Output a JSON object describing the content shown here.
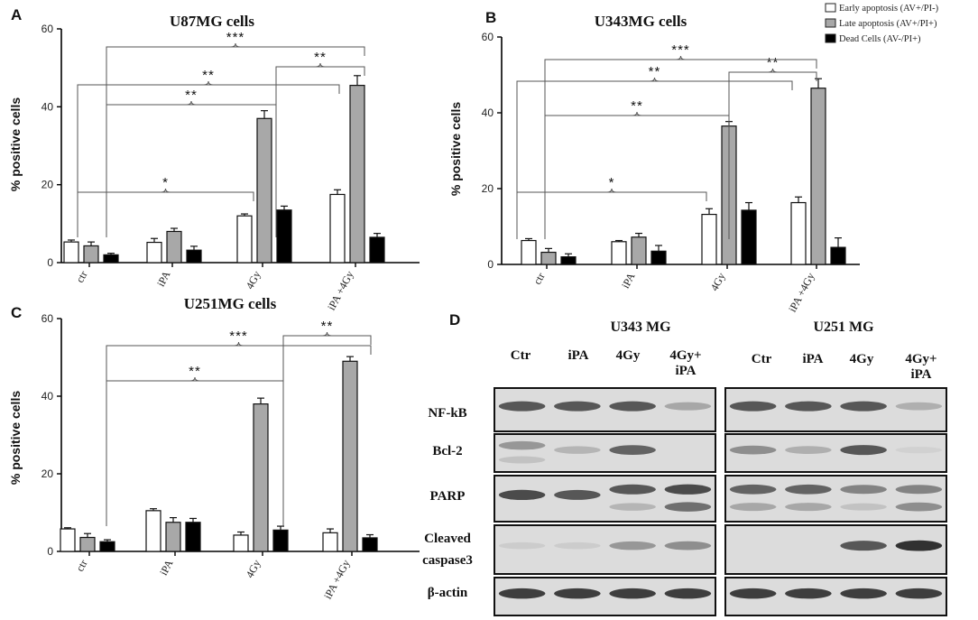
{
  "legend": {
    "items": [
      {
        "label": "Early apoptosis (AV+/PI-)",
        "color": "#ffffff"
      },
      {
        "label": "Late apoptosis (AV+/PI+)",
        "color": "#a8a8a8"
      },
      {
        "label": "Dead Cells (AV-/PI+)",
        "color": "#000000"
      }
    ]
  },
  "chart_data": [
    {
      "panel": "A",
      "type": "bar",
      "title": "U87MG cells",
      "ylabel": "% positive cells",
      "xlabel": "",
      "ylim": [
        0,
        60
      ],
      "yticks": [
        0,
        20,
        40,
        60
      ],
      "categories": [
        "ctr",
        "iPA",
        "4Gy",
        "iPA +4Gy"
      ],
      "series": [
        {
          "name": "Early apoptosis (AV+/PI-)",
          "color": "#ffffff",
          "values": [
            5.3,
            5.2,
            12.0,
            17.5
          ],
          "errors": [
            0.5,
            1.0,
            0.5,
            1.2
          ]
        },
        {
          "name": "Late apoptosis (AV+/PI+)",
          "color": "#a8a8a8",
          "values": [
            4.3,
            8.0,
            37.0,
            45.5
          ],
          "errors": [
            1.0,
            0.8,
            2.0,
            2.5
          ]
        },
        {
          "name": "Dead Cells (AV-/PI+)",
          "color": "#000000",
          "values": [
            2.0,
            3.2,
            13.5,
            6.5
          ],
          "errors": [
            0.4,
            1.0,
            1.0,
            1.0
          ]
        }
      ],
      "significance": [
        {
          "from": [
            0,
            0
          ],
          "to": [
            2,
            0
          ],
          "label": "*"
        },
        {
          "from": [
            0,
            1
          ],
          "to": [
            2,
            1
          ],
          "label": "**"
        },
        {
          "from": [
            0,
            0
          ],
          "to": [
            3,
            0
          ],
          "label": "**"
        },
        {
          "from": [
            2,
            1
          ],
          "to": [
            3,
            1
          ],
          "label": "**"
        },
        {
          "from": [
            0,
            1
          ],
          "to": [
            3,
            1
          ],
          "label": "***"
        }
      ]
    },
    {
      "panel": "B",
      "type": "bar",
      "title": "U343MG cells",
      "ylabel": "% positive cells",
      "xlabel": "",
      "ylim": [
        0,
        60
      ],
      "yticks": [
        0,
        20,
        40,
        60
      ],
      "categories": [
        "ctr",
        "iPA",
        "4Gy",
        "iPA +4Gy"
      ],
      "series": [
        {
          "name": "Early apoptosis (AV+/PI-)",
          "color": "#ffffff",
          "values": [
            6.3,
            6.0,
            13.2,
            16.3
          ],
          "errors": [
            0.5,
            0.3,
            1.5,
            1.5
          ]
        },
        {
          "name": "Late apoptosis (AV+/PI+)",
          "color": "#a8a8a8",
          "values": [
            3.2,
            7.2,
            36.5,
            46.5
          ],
          "errors": [
            1.0,
            1.0,
            1.2,
            2.5
          ]
        },
        {
          "name": "Dead Cells (AV-/PI+)",
          "color": "#000000",
          "values": [
            2.0,
            3.5,
            14.3,
            4.5
          ],
          "errors": [
            0.8,
            1.5,
            2.0,
            2.5
          ]
        }
      ],
      "significance": [
        {
          "from": [
            0,
            0
          ],
          "to": [
            2,
            0
          ],
          "label": "*"
        },
        {
          "from": [
            0,
            1
          ],
          "to": [
            2,
            1
          ],
          "label": "**"
        },
        {
          "from": [
            0,
            0
          ],
          "to": [
            3,
            0
          ],
          "label": "**"
        },
        {
          "from": [
            2,
            1
          ],
          "to": [
            3,
            1
          ],
          "label": "**"
        },
        {
          "from": [
            0,
            1
          ],
          "to": [
            3,
            1
          ],
          "label": "***"
        }
      ]
    },
    {
      "panel": "C",
      "type": "bar",
      "title": "U251MG cells",
      "ylabel": "% positive cells",
      "xlabel": "",
      "ylim": [
        0,
        60
      ],
      "yticks": [
        0,
        20,
        40,
        60
      ],
      "categories": [
        "ctr",
        "iPA",
        "4Gy",
        "iPA +4Gy"
      ],
      "series": [
        {
          "name": "Early apoptosis (AV+/PI-)",
          "color": "#ffffff",
          "values": [
            5.8,
            10.5,
            4.2,
            4.8
          ],
          "errors": [
            0.3,
            0.5,
            0.8,
            1.0
          ]
        },
        {
          "name": "Late apoptosis (AV+/PI+)",
          "color": "#a8a8a8",
          "values": [
            3.6,
            7.5,
            38.0,
            49.0
          ],
          "errors": [
            1.0,
            1.2,
            1.5,
            1.2
          ]
        },
        {
          "name": "Dead Cells (AV-/PI+)",
          "color": "#000000",
          "values": [
            2.5,
            7.5,
            5.5,
            3.5
          ],
          "errors": [
            0.5,
            1.0,
            1.0,
            0.8
          ]
        }
      ],
      "significance": [
        {
          "from": [
            0,
            1
          ],
          "to": [
            2,
            1
          ],
          "label": "**"
        },
        {
          "from": [
            2,
            1
          ],
          "to": [
            3,
            1
          ],
          "label": "**"
        },
        {
          "from": [
            0,
            1
          ],
          "to": [
            3,
            1
          ],
          "label": "***"
        }
      ]
    }
  ],
  "panel_labels": [
    "A",
    "B",
    "C",
    "D"
  ],
  "western": {
    "panel": "D",
    "blots": [
      {
        "title": "U343 MG",
        "lanes": [
          "Ctr",
          "iPA",
          "4Gy",
          "4Gy+\niPA"
        ],
        "rows": [
          {
            "label": "NF-kB",
            "bands": [
              [
                0.8
              ],
              [
                0.8
              ],
              [
                0.8
              ],
              [
                0.4
              ]
            ]
          },
          {
            "label": "Bcl-2",
            "bands": [
              [
                0.5,
                0.2
              ],
              [
                0.3
              ],
              [
                0.75
              ],
              [
                0
              ]
            ]
          },
          {
            "label": "PARP",
            "bands": [
              [
                0.85
              ],
              [
                0.8
              ],
              [
                0.8,
                0.3
              ],
              [
                0.85,
                0.7
              ]
            ]
          },
          {
            "label": "Cleaved\ncaspase3",
            "bands": [
              [
                0.1
              ],
              [
                0.1
              ],
              [
                0.5
              ],
              [
                0.55
              ]
            ]
          },
          {
            "label": "β-actin",
            "bands": [
              [
                0.9
              ],
              [
                0.9
              ],
              [
                0.9
              ],
              [
                0.9
              ]
            ]
          }
        ]
      },
      {
        "title": "U251 MG",
        "lanes": [
          "Ctr",
          "iPA",
          "4Gy",
          "4Gy+\niPA"
        ],
        "rows": [
          {
            "label": "NF-kB",
            "bands": [
              [
                0.8
              ],
              [
                0.8
              ],
              [
                0.8
              ],
              [
                0.35
              ]
            ]
          },
          {
            "label": "Bcl-2",
            "bands": [
              [
                0.55
              ],
              [
                0.35
              ],
              [
                0.8
              ],
              [
                0.05
              ]
            ]
          },
          {
            "label": "PARP",
            "bands": [
              [
                0.75,
                0.4
              ],
              [
                0.75,
                0.4
              ],
              [
                0.6,
                0.2
              ],
              [
                0.6,
                0.55
              ]
            ]
          },
          {
            "label": "Cleaved\ncaspase3",
            "bands": [
              [
                0
              ],
              [
                0
              ],
              [
                0.8
              ],
              [
                0.95
              ]
            ]
          },
          {
            "label": "β-actin",
            "bands": [
              [
                0.9
              ],
              [
                0.9
              ],
              [
                0.9
              ],
              [
                0.9
              ]
            ]
          }
        ]
      }
    ]
  }
}
